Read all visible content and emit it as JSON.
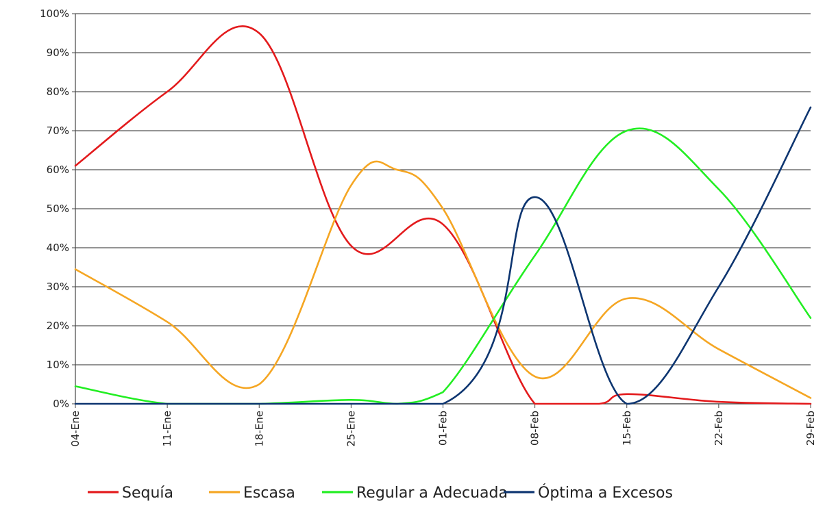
{
  "chart_data": {
    "type": "line",
    "title": "",
    "xlabel": "",
    "ylabel": "",
    "ylim": [
      0,
      100
    ],
    "y_ticks": [
      "0%",
      "10%",
      "20%",
      "30%",
      "40%",
      "50%",
      "60%",
      "70%",
      "80%",
      "90%",
      "100%"
    ],
    "categories": [
      "04-Ene",
      "11-Ene",
      "18-Ene",
      "25-Ene",
      "01-Feb",
      "08-Feb",
      "15-Feb",
      "22-Feb",
      "29-Feb"
    ],
    "smooth": true,
    "grid": "horizontal",
    "legend_position": "bottom",
    "series": [
      {
        "name": "Sequía",
        "color": "#e31a1c",
        "points": [
          [
            0,
            61
          ],
          [
            1,
            80
          ],
          [
            2,
            95
          ],
          [
            3,
            40.5
          ],
          [
            4,
            46
          ],
          [
            5,
            0
          ],
          [
            5.7,
            0
          ],
          [
            6,
            2.5
          ],
          [
            7,
            0.5
          ],
          [
            8,
            0
          ]
        ]
      },
      {
        "name": "Escasa",
        "color": "#f5a623",
        "points": [
          [
            0,
            34.5
          ],
          [
            1,
            21
          ],
          [
            2,
            5
          ],
          [
            3,
            56
          ],
          [
            3.5,
            60
          ],
          [
            4,
            50
          ],
          [
            5,
            7
          ],
          [
            6,
            27
          ],
          [
            7,
            14
          ],
          [
            8,
            1.5
          ]
        ]
      },
      {
        "name": "Regular a Adecuada",
        "color": "#22ee22",
        "points": [
          [
            0,
            4.5
          ],
          [
            1,
            0
          ],
          [
            2,
            0
          ],
          [
            3,
            1
          ],
          [
            3.5,
            0
          ],
          [
            4,
            3
          ],
          [
            5,
            38
          ],
          [
            6,
            70
          ],
          [
            7,
            55
          ],
          [
            8,
            22
          ]
        ]
      },
      {
        "name": "Óptima a Excesos",
        "color": "#0d3570",
        "points": [
          [
            0,
            0
          ],
          [
            4,
            0
          ],
          [
            5,
            53
          ],
          [
            6,
            0
          ],
          [
            7,
            30
          ],
          [
            8,
            76
          ]
        ]
      }
    ]
  }
}
